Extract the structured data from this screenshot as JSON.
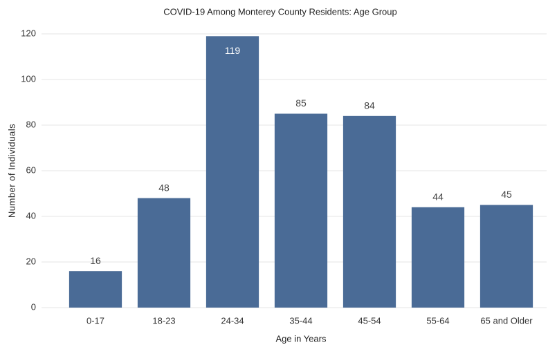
{
  "chart_data": {
    "type": "bar",
    "title": "COVID-19 Among Monterey County Residents: Age Group",
    "x_label": "Age in Years",
    "y_label": "Number of Individuals",
    "categories": [
      "0-17",
      "18-23",
      "24-34",
      "35-44",
      "45-54",
      "55-64",
      "65 and Older"
    ],
    "values": [
      16,
      48,
      119,
      85,
      84,
      44,
      45
    ],
    "color": "#4a6b96",
    "ylim": [
      0,
      120
    ],
    "yticks": [
      0,
      20,
      40,
      60,
      80,
      100,
      120
    ],
    "grid": true
  }
}
